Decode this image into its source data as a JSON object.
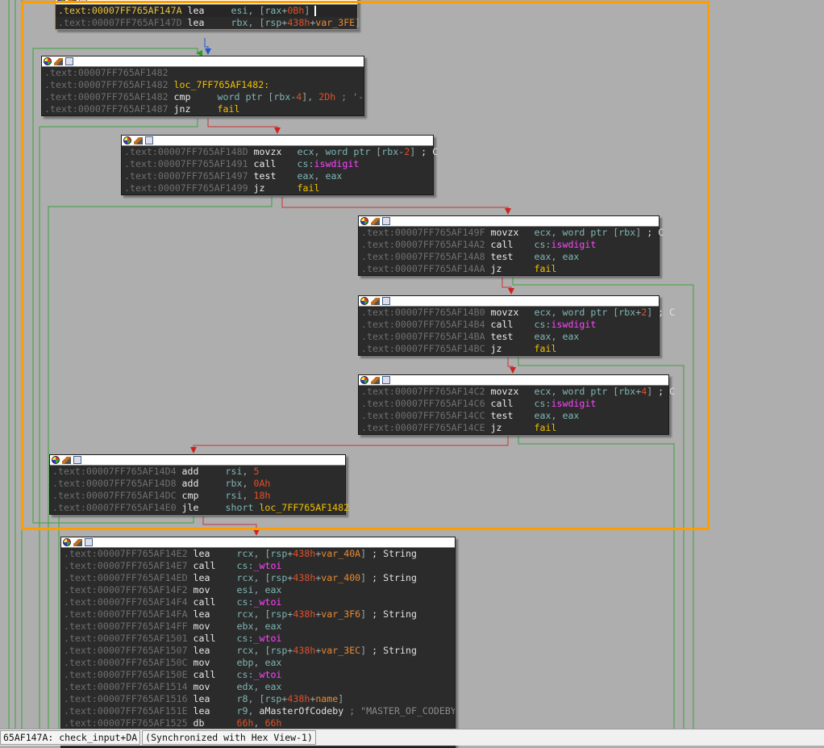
{
  "blocks": [
    {
      "id": "b0",
      "selected": true,
      "rows": [
        {
          "addr": ".text:00007FF765AF147A",
          "hl": true,
          "mn": "lea",
          "ops": [
            [
              "esi",
              "reg"
            ],
            [
              ", ",
              "pun"
            ],
            [
              "[",
              "pun"
            ],
            [
              "rax",
              "reg"
            ],
            [
              "+",
              "pun"
            ],
            [
              "0Bh",
              "num"
            ],
            [
              "]",
              "pun"
            ]
          ]
        },
        {
          "addr": ".text:00007FF765AF147D",
          "mn": "lea",
          "ops": [
            [
              "rbx",
              "reg"
            ],
            [
              ", ",
              "pun"
            ],
            [
              "[",
              "pun"
            ],
            [
              "rsp",
              "reg"
            ],
            [
              "+",
              "pun"
            ],
            [
              "438h",
              "num"
            ],
            [
              "+",
              "pun"
            ],
            [
              "var_3FE",
              "var"
            ],
            [
              "]",
              "pun"
            ]
          ]
        }
      ]
    },
    {
      "id": "b1",
      "rows": [
        {
          "addr": ".text:00007FF765AF1482",
          "mn": "",
          "ops": []
        },
        {
          "addr": ".text:00007FF765AF1482",
          "label": "loc_7FF765AF1482:"
        },
        {
          "addr": ".text:00007FF765AF1482",
          "mn": "cmp",
          "ops": [
            [
              "word ptr ",
              "reg"
            ],
            [
              "[",
              "pun"
            ],
            [
              "rbx",
              "reg"
            ],
            [
              "-",
              "pun"
            ],
            [
              "4",
              "num"
            ],
            [
              "], ",
              "pun"
            ],
            [
              "2Dh",
              "num"
            ],
            [
              " ; '-'",
              "str"
            ]
          ]
        },
        {
          "addr": ".text:00007FF765AF1487",
          "mn": "jnz",
          "ops": [
            [
              "fail",
              "lab"
            ]
          ]
        }
      ]
    },
    {
      "id": "b2",
      "rows": [
        {
          "addr": ".text:00007FF765AF148D",
          "mn": "movzx",
          "ops": [
            [
              "ecx",
              "reg"
            ],
            [
              ", ",
              "pun"
            ],
            [
              "word ptr ",
              "reg"
            ],
            [
              "[",
              "pun"
            ],
            [
              "rbx",
              "reg"
            ],
            [
              "-",
              "pun"
            ],
            [
              "2",
              "num"
            ],
            [
              "]",
              "pun"
            ],
            [
              " ; C",
              "cmt"
            ]
          ]
        },
        {
          "addr": ".text:00007FF765AF1491",
          "mn": "call",
          "ops": [
            [
              "cs:",
              "reg"
            ],
            [
              "iswdigit",
              "fn"
            ]
          ]
        },
        {
          "addr": ".text:00007FF765AF1497",
          "mn": "test",
          "ops": [
            [
              "eax",
              "reg"
            ],
            [
              ", ",
              "pun"
            ],
            [
              "eax",
              "reg"
            ]
          ]
        },
        {
          "addr": ".text:00007FF765AF1499",
          "mn": "jz",
          "ops": [
            [
              "fail",
              "lab"
            ]
          ]
        }
      ]
    },
    {
      "id": "b3",
      "rows": [
        {
          "addr": ".text:00007FF765AF149F",
          "mn": "movzx",
          "ops": [
            [
              "ecx",
              "reg"
            ],
            [
              ", ",
              "pun"
            ],
            [
              "word ptr ",
              "reg"
            ],
            [
              "[",
              "pun"
            ],
            [
              "rbx",
              "reg"
            ],
            [
              "]",
              "pun"
            ],
            [
              " ; C",
              "cmt"
            ]
          ]
        },
        {
          "addr": ".text:00007FF765AF14A2",
          "mn": "call",
          "ops": [
            [
              "cs:",
              "reg"
            ],
            [
              "iswdigit",
              "fn"
            ]
          ]
        },
        {
          "addr": ".text:00007FF765AF14A8",
          "mn": "test",
          "ops": [
            [
              "eax",
              "reg"
            ],
            [
              ", ",
              "pun"
            ],
            [
              "eax",
              "reg"
            ]
          ]
        },
        {
          "addr": ".text:00007FF765AF14AA",
          "mn": "jz",
          "ops": [
            [
              "fail",
              "lab"
            ]
          ]
        }
      ]
    },
    {
      "id": "b4",
      "rows": [
        {
          "addr": ".text:00007FF765AF14B0",
          "mn": "movzx",
          "ops": [
            [
              "ecx",
              "reg"
            ],
            [
              ", ",
              "pun"
            ],
            [
              "word ptr ",
              "reg"
            ],
            [
              "[",
              "pun"
            ],
            [
              "rbx",
              "reg"
            ],
            [
              "+",
              "pun"
            ],
            [
              "2",
              "num"
            ],
            [
              "]",
              "pun"
            ],
            [
              " ; C",
              "cmt"
            ]
          ]
        },
        {
          "addr": ".text:00007FF765AF14B4",
          "mn": "call",
          "ops": [
            [
              "cs:",
              "reg"
            ],
            [
              "iswdigit",
              "fn"
            ]
          ]
        },
        {
          "addr": ".text:00007FF765AF14BA",
          "mn": "test",
          "ops": [
            [
              "eax",
              "reg"
            ],
            [
              ", ",
              "pun"
            ],
            [
              "eax",
              "reg"
            ]
          ]
        },
        {
          "addr": ".text:00007FF765AF14BC",
          "mn": "jz",
          "ops": [
            [
              "fail",
              "lab"
            ]
          ]
        }
      ]
    },
    {
      "id": "b5",
      "rows": [
        {
          "addr": ".text:00007FF765AF14C2",
          "mn": "movzx",
          "ops": [
            [
              "ecx",
              "reg"
            ],
            [
              ", ",
              "pun"
            ],
            [
              "word ptr ",
              "reg"
            ],
            [
              "[",
              "pun"
            ],
            [
              "rbx",
              "reg"
            ],
            [
              "+",
              "pun"
            ],
            [
              "4",
              "num"
            ],
            [
              "]",
              "pun"
            ],
            [
              " ; C",
              "cmt"
            ]
          ]
        },
        {
          "addr": ".text:00007FF765AF14C6",
          "mn": "call",
          "ops": [
            [
              "cs:",
              "reg"
            ],
            [
              "iswdigit",
              "fn"
            ]
          ]
        },
        {
          "addr": ".text:00007FF765AF14CC",
          "mn": "test",
          "ops": [
            [
              "eax",
              "reg"
            ],
            [
              ", ",
              "pun"
            ],
            [
              "eax",
              "reg"
            ]
          ]
        },
        {
          "addr": ".text:00007FF765AF14CE",
          "mn": "jz",
          "ops": [
            [
              "fail",
              "lab"
            ]
          ]
        }
      ]
    },
    {
      "id": "b6",
      "rows": [
        {
          "addr": ".text:00007FF765AF14D4",
          "mn": "add",
          "ops": [
            [
              "rsi",
              "reg"
            ],
            [
              ", ",
              "pun"
            ],
            [
              "5",
              "num"
            ]
          ]
        },
        {
          "addr": ".text:00007FF765AF14D8",
          "mn": "add",
          "ops": [
            [
              "rbx",
              "reg"
            ],
            [
              ", ",
              "pun"
            ],
            [
              "0Ah",
              "num"
            ]
          ]
        },
        {
          "addr": ".text:00007FF765AF14DC",
          "mn": "cmp",
          "ops": [
            [
              "rsi",
              "reg"
            ],
            [
              ", ",
              "pun"
            ],
            [
              "18h",
              "num"
            ]
          ]
        },
        {
          "addr": ".text:00007FF765AF14E0",
          "mn": "jle",
          "ops": [
            [
              "short ",
              "reg"
            ],
            [
              "loc_7FF765AF1482",
              "lab"
            ]
          ]
        }
      ]
    },
    {
      "id": "b7",
      "rows": [
        {
          "addr": ".text:00007FF765AF14E2",
          "mn": "lea",
          "ops": [
            [
              "rcx",
              "reg"
            ],
            [
              ", ",
              "pun"
            ],
            [
              "[",
              "pun"
            ],
            [
              "rsp",
              "reg"
            ],
            [
              "+",
              "pun"
            ],
            [
              "438h",
              "num"
            ],
            [
              "+",
              "pun"
            ],
            [
              "var_40A",
              "var"
            ],
            [
              "]",
              "pun"
            ],
            [
              " ; String",
              "cmt"
            ]
          ]
        },
        {
          "addr": ".text:00007FF765AF14E7",
          "mn": "call",
          "ops": [
            [
              "cs:",
              "reg"
            ],
            [
              "_wtoi",
              "fn"
            ]
          ]
        },
        {
          "addr": ".text:00007FF765AF14ED",
          "mn": "lea",
          "ops": [
            [
              "rcx",
              "reg"
            ],
            [
              ", ",
              "pun"
            ],
            [
              "[",
              "pun"
            ],
            [
              "rsp",
              "reg"
            ],
            [
              "+",
              "pun"
            ],
            [
              "438h",
              "num"
            ],
            [
              "+",
              "pun"
            ],
            [
              "var_400",
              "var"
            ],
            [
              "]",
              "pun"
            ],
            [
              " ; String",
              "cmt"
            ]
          ]
        },
        {
          "addr": ".text:00007FF765AF14F2",
          "mn": "mov",
          "ops": [
            [
              "esi",
              "reg"
            ],
            [
              ", ",
              "pun"
            ],
            [
              "eax",
              "reg"
            ]
          ]
        },
        {
          "addr": ".text:00007FF765AF14F4",
          "mn": "call",
          "ops": [
            [
              "cs:",
              "reg"
            ],
            [
              "_wtoi",
              "fn"
            ]
          ]
        },
        {
          "addr": ".text:00007FF765AF14FA",
          "mn": "lea",
          "ops": [
            [
              "rcx",
              "reg"
            ],
            [
              ", ",
              "pun"
            ],
            [
              "[",
              "pun"
            ],
            [
              "rsp",
              "reg"
            ],
            [
              "+",
              "pun"
            ],
            [
              "438h",
              "num"
            ],
            [
              "+",
              "pun"
            ],
            [
              "var_3F6",
              "var"
            ],
            [
              "]",
              "pun"
            ],
            [
              " ; String",
              "cmt"
            ]
          ]
        },
        {
          "addr": ".text:00007FF765AF14FF",
          "mn": "mov",
          "ops": [
            [
              "ebx",
              "reg"
            ],
            [
              ", ",
              "pun"
            ],
            [
              "eax",
              "reg"
            ]
          ]
        },
        {
          "addr": ".text:00007FF765AF1501",
          "mn": "call",
          "ops": [
            [
              "cs:",
              "reg"
            ],
            [
              "_wtoi",
              "fn"
            ]
          ]
        },
        {
          "addr": ".text:00007FF765AF1507",
          "mn": "lea",
          "ops": [
            [
              "rcx",
              "reg"
            ],
            [
              ", ",
              "pun"
            ],
            [
              "[",
              "pun"
            ],
            [
              "rsp",
              "reg"
            ],
            [
              "+",
              "pun"
            ],
            [
              "438h",
              "num"
            ],
            [
              "+",
              "pun"
            ],
            [
              "var_3EC",
              "var"
            ],
            [
              "]",
              "pun"
            ],
            [
              " ; String",
              "cmt"
            ]
          ]
        },
        {
          "addr": ".text:00007FF765AF150C",
          "mn": "mov",
          "ops": [
            [
              "ebp",
              "reg"
            ],
            [
              ", ",
              "pun"
            ],
            [
              "eax",
              "reg"
            ]
          ]
        },
        {
          "addr": ".text:00007FF765AF150E",
          "mn": "call",
          "ops": [
            [
              "cs:",
              "reg"
            ],
            [
              "_wtoi",
              "fn"
            ]
          ]
        },
        {
          "addr": ".text:00007FF765AF1514",
          "mn": "mov",
          "ops": [
            [
              "edx",
              "reg"
            ],
            [
              ", ",
              "pun"
            ],
            [
              "eax",
              "reg"
            ]
          ]
        },
        {
          "addr": ".text:00007FF765AF1516",
          "mn": "lea",
          "ops": [
            [
              "r8",
              "reg"
            ],
            [
              ", ",
              "pun"
            ],
            [
              "[",
              "pun"
            ],
            [
              "rsp",
              "reg"
            ],
            [
              "+",
              "pun"
            ],
            [
              "438h",
              "num"
            ],
            [
              "+",
              "pun"
            ],
            [
              "name",
              "var"
            ],
            [
              "]",
              "pun"
            ]
          ]
        },
        {
          "addr": ".text:00007FF765AF151E",
          "mn": "lea",
          "ops": [
            [
              "r9",
              "reg"
            ],
            [
              ", ",
              "pun"
            ],
            [
              "aMasterOfCodeby",
              "cmt"
            ],
            [
              " ; \"MASTER_OF_CODEBY\"",
              "str"
            ]
          ]
        },
        {
          "addr": ".text:00007FF765AF1525",
          "mn": "db",
          "ops": [
            [
              "66h",
              "num"
            ],
            [
              ", ",
              "pun"
            ],
            [
              "66h",
              "num"
            ]
          ]
        }
      ]
    }
  ],
  "status": {
    "location": "65AF147A: check_input+DA",
    "sync": "(Synchronized with Hex View-1)"
  },
  "colors": {
    "selection_frame": "#ff9c00",
    "edge_true": "#3aa33a",
    "edge_false": "#cc3333",
    "edge_uncond": "#3366cc"
  }
}
